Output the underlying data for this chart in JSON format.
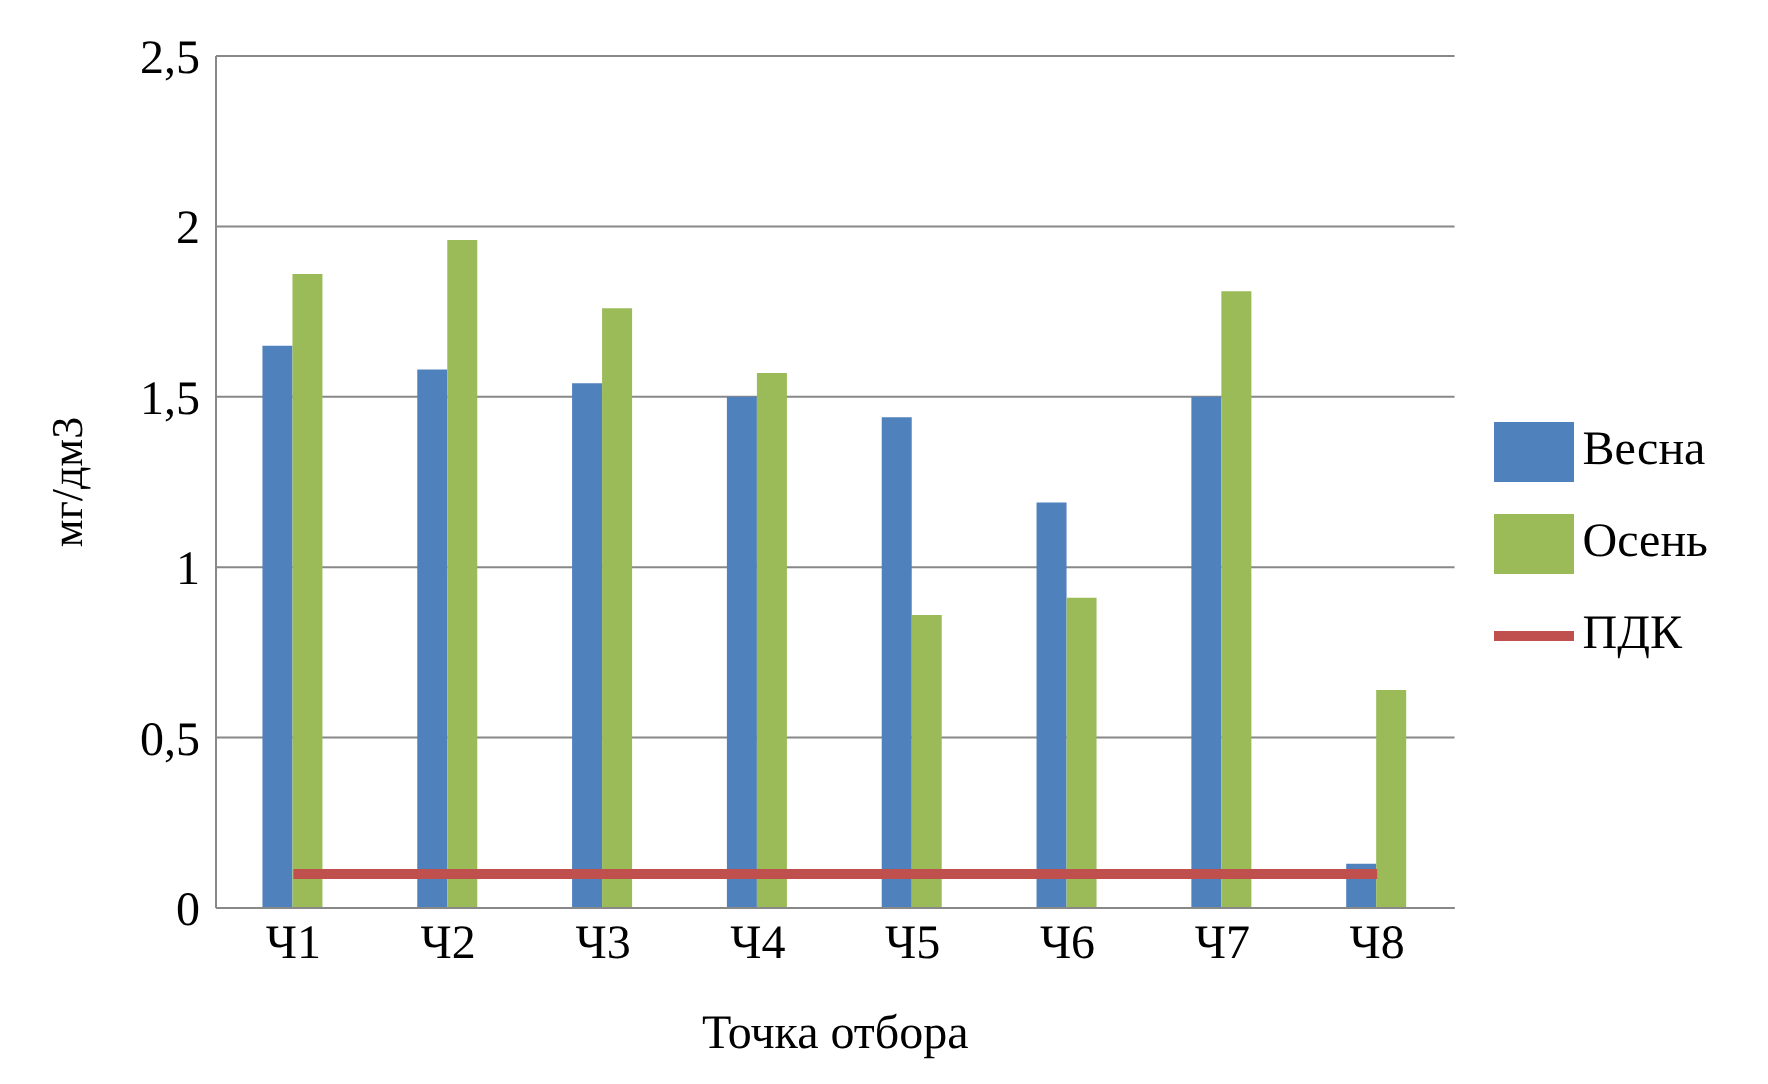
{
  "chart_data": {
    "type": "bar",
    "xlabel": "Точка отбора",
    "ylabel": "мг/дм3",
    "categories": [
      "Ч1",
      "Ч2",
      "Ч3",
      "Ч4",
      "Ч5",
      "Ч6",
      "Ч7",
      "Ч8"
    ],
    "series": [
      {
        "name": "Весна",
        "color": "#4f81bd",
        "values": [
          1.65,
          1.58,
          1.54,
          1.5,
          1.44,
          1.19,
          1.5,
          0.13
        ]
      },
      {
        "name": "Осень",
        "color": "#9bbb59",
        "values": [
          1.86,
          1.96,
          1.76,
          1.57,
          0.86,
          0.91,
          1.81,
          0.64
        ]
      },
      {
        "name": "ПДК",
        "type": "line",
        "color": "#c0504d",
        "marker": "none",
        "values": [
          0.1,
          0.1,
          0.1,
          0.1,
          0.1,
          0.1,
          0.1,
          0.1
        ]
      }
    ],
    "ylim": [
      0,
      2.5
    ],
    "yticks": [
      0,
      {
        "value": 0.5,
        "label": "0,5"
      },
      1,
      {
        "value": 1.5,
        "label": "1,5"
      },
      2,
      {
        "value": 2.5,
        "label": "2,5"
      }
    ],
    "grid": "y",
    "legend": "right"
  }
}
